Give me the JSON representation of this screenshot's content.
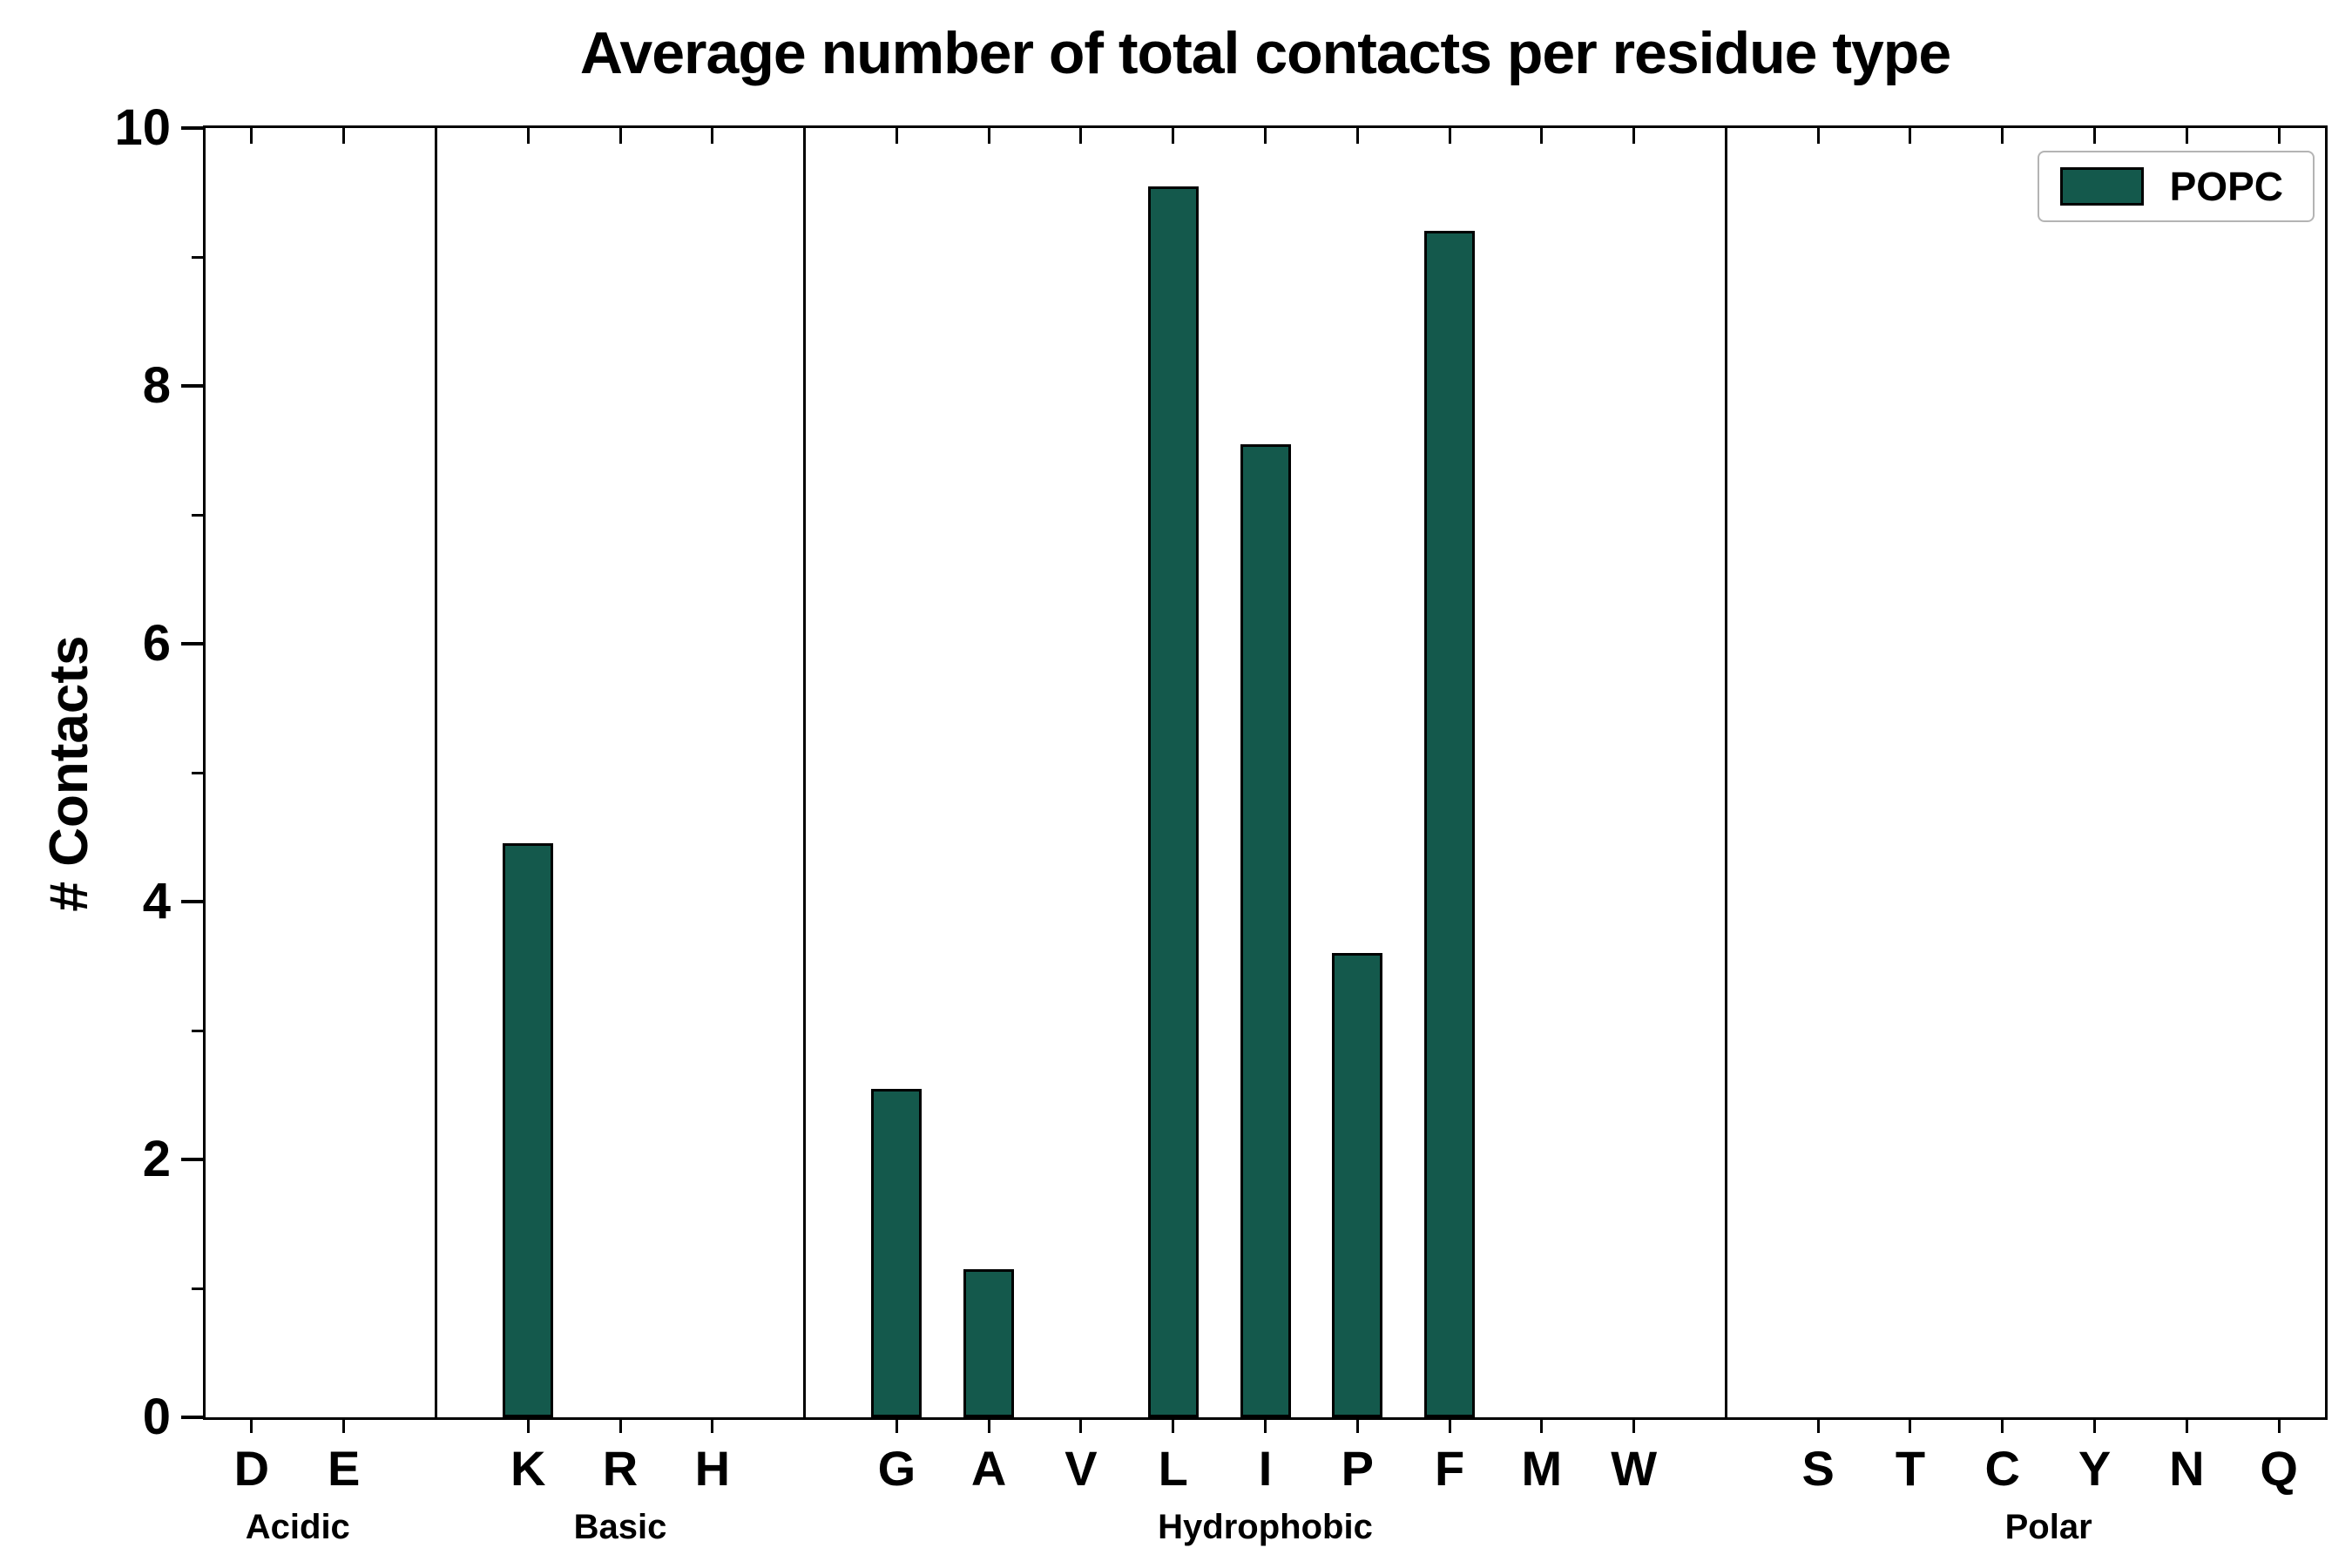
{
  "chart_data": {
    "type": "bar",
    "title": "Average number of total contacts per residue type",
    "ylabel": "# Contacts",
    "xlabel": "",
    "ylim": [
      0,
      10
    ],
    "yticks_major": [
      0,
      2,
      4,
      6,
      8,
      10
    ],
    "yticks_minor": [
      1,
      3,
      5,
      7,
      9
    ],
    "grid": false,
    "bar_color": "#14594C",
    "legend": {
      "position": "upper right",
      "entries": [
        "POPC"
      ]
    },
    "groups": [
      {
        "label": "Acidic",
        "categories": [
          "D",
          "E"
        ],
        "values": [
          0,
          0
        ]
      },
      {
        "label": "Basic",
        "categories": [
          "K",
          "R",
          "H"
        ],
        "values": [
          4.45,
          0,
          0
        ]
      },
      {
        "label": "Hydrophobic",
        "categories": [
          "G",
          "A",
          "V",
          "L",
          "I",
          "P",
          "F",
          "M",
          "W"
        ],
        "values": [
          2.55,
          1.15,
          0,
          9.55,
          7.55,
          3.6,
          9.2,
          0,
          0
        ]
      },
      {
        "label": "Polar",
        "categories": [
          "S",
          "T",
          "C",
          "Y",
          "N",
          "Q"
        ],
        "values": [
          0,
          0,
          0,
          0,
          0,
          0
        ]
      }
    ]
  }
}
